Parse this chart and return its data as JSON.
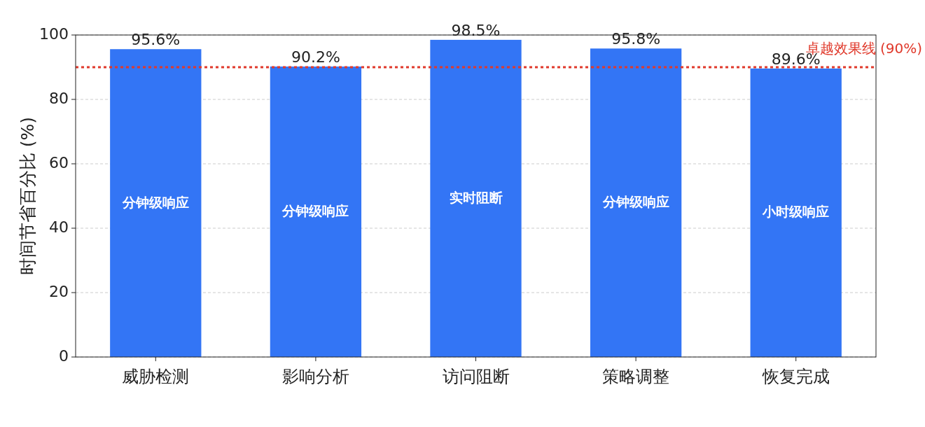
{
  "chart_data": {
    "type": "bar",
    "ylabel": "时间节省百分比 (%)",
    "categories": [
      "威胁检测",
      "影响分析",
      "访问阻断",
      "策略调整",
      "恢复完成"
    ],
    "values": [
      95.6,
      90.2,
      98.5,
      95.8,
      89.6
    ],
    "value_labels": [
      "95.6%",
      "90.2%",
      "98.5%",
      "95.8%",
      "89.6%"
    ],
    "color": "#3375f5",
    "ylim": [
      0,
      100
    ],
    "yticks": [
      0,
      20,
      40,
      60,
      80,
      100
    ],
    "grid": "y",
    "ref_lines": [
      {
        "axis": "y",
        "value": 90,
        "label": "卓越效果线 (90%)",
        "color": "#e0392b",
        "line_style": "dotted"
      }
    ],
    "annotations": [
      "分钟级响应",
      "分钟级响应",
      "实时阻断",
      "分钟级响应",
      "小时级响应"
    ]
  }
}
